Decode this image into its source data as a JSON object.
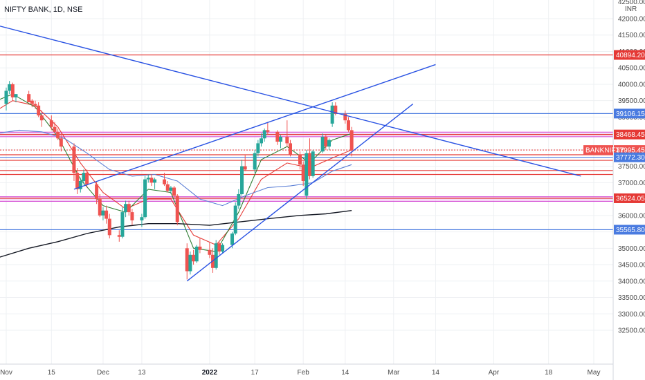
{
  "header": {
    "symbol_title": "NIFTY BANK, 1D, NSE",
    "currency": "INR",
    "top_price_partial": "42500.00"
  },
  "colors": {
    "up": "#26a69a",
    "down": "#ef5350",
    "ema_red": "#e53935",
    "ema_green": "#2e7d32",
    "ema_blue": "#5b7fd6",
    "ema_black": "#131722",
    "trendline": "#2952e3",
    "level_red": "#e53935",
    "level_blue": "#4a7be0",
    "level_magenta": "#d13fd1",
    "grid": "#eef0f3"
  },
  "chart_data": {
    "type": "candlestick",
    "symbol": "NIFTY BANK, 1D, NSE",
    "currency": "INR",
    "y_range": [
      32000,
      42500
    ],
    "y_ticks": [
      32500,
      33000,
      33500,
      34000,
      34500,
      35000,
      35500,
      36000,
      36500,
      37000,
      37500,
      38000,
      38500,
      39000,
      39500,
      40000,
      40500,
      41000,
      41500,
      42000
    ],
    "x_ticks": [
      {
        "label": "Nov",
        "date": "2021-11-01",
        "bold": false
      },
      {
        "label": "15",
        "date": "2021-11-15",
        "bold": false
      },
      {
        "label": "Dec",
        "date": "2021-12-01",
        "bold": false
      },
      {
        "label": "13",
        "date": "2021-12-13",
        "bold": false
      },
      {
        "label": "2022",
        "date": "2022-01-03",
        "bold": true
      },
      {
        "label": "17",
        "date": "2022-01-17",
        "bold": false
      },
      {
        "label": "Feb",
        "date": "2022-02-01",
        "bold": false
      },
      {
        "label": "14",
        "date": "2022-02-14",
        "bold": false
      },
      {
        "label": "Mar",
        "date": "2022-03-01",
        "bold": false
      },
      {
        "label": "14",
        "date": "2022-03-14",
        "bold": false
      },
      {
        "label": "Apr",
        "date": "2022-04-01",
        "bold": false
      },
      {
        "label": "18",
        "date": "2022-04-18",
        "bold": false
      },
      {
        "label": "May",
        "date": "2022-05-02",
        "bold": false
      }
    ],
    "candles": [
      {
        "date": "2021-10-29",
        "o": 39100,
        "h": 39400,
        "l": 38700,
        "c": 39000
      },
      {
        "date": "2021-11-01",
        "o": 39400,
        "h": 39900,
        "l": 39200,
        "c": 39800
      },
      {
        "date": "2021-11-02",
        "o": 39800,
        "h": 40100,
        "l": 39700,
        "c": 40000
      },
      {
        "date": "2021-11-03",
        "o": 40000,
        "h": 40050,
        "l": 39500,
        "c": 39600
      },
      {
        "date": "2021-11-04",
        "o": 39600,
        "h": 39700,
        "l": 39450,
        "c": 39700
      },
      {
        "date": "2021-11-08",
        "o": 39700,
        "h": 39800,
        "l": 39500,
        "c": 39450
      },
      {
        "date": "2021-11-09",
        "o": 39500,
        "h": 39550,
        "l": 39300,
        "c": 39400
      },
      {
        "date": "2021-11-10",
        "o": 39400,
        "h": 39500,
        "l": 39250,
        "c": 39350
      },
      {
        "date": "2021-11-11",
        "o": 39350,
        "h": 39450,
        "l": 39000,
        "c": 39050
      },
      {
        "date": "2021-11-12",
        "o": 39050,
        "h": 39200,
        "l": 38700,
        "c": 38900
      },
      {
        "date": "2021-11-15",
        "o": 38900,
        "h": 39050,
        "l": 38600,
        "c": 38700
      },
      {
        "date": "2021-11-16",
        "o": 38700,
        "h": 38850,
        "l": 38500,
        "c": 38550
      },
      {
        "date": "2021-11-17",
        "o": 38550,
        "h": 38650,
        "l": 38300,
        "c": 38350
      },
      {
        "date": "2021-11-18",
        "o": 38350,
        "h": 38500,
        "l": 37950,
        "c": 38100
      },
      {
        "date": "2021-11-22",
        "o": 38100,
        "h": 38200,
        "l": 37050,
        "c": 37300
      },
      {
        "date": "2021-11-23",
        "o": 37300,
        "h": 37450,
        "l": 36650,
        "c": 36800
      },
      {
        "date": "2021-11-24",
        "o": 36800,
        "h": 37150,
        "l": 36700,
        "c": 37050
      },
      {
        "date": "2021-11-25",
        "o": 37050,
        "h": 37400,
        "l": 36950,
        "c": 37300
      },
      {
        "date": "2021-11-26",
        "o": 37300,
        "h": 37400,
        "l": 36850,
        "c": 36950
      },
      {
        "date": "2021-11-29",
        "o": 36950,
        "h": 37050,
        "l": 36350,
        "c": 36500
      },
      {
        "date": "2021-11-30",
        "o": 36500,
        "h": 36650,
        "l": 35950,
        "c": 36000
      },
      {
        "date": "2021-12-01",
        "o": 36000,
        "h": 36250,
        "l": 35850,
        "c": 36150
      },
      {
        "date": "2021-12-02",
        "o": 36150,
        "h": 36300,
        "l": 35750,
        "c": 35900
      },
      {
        "date": "2021-12-03",
        "o": 35900,
        "h": 36050,
        "l": 35300,
        "c": 35400
      },
      {
        "date": "2021-12-06",
        "o": 35400,
        "h": 35550,
        "l": 35200,
        "c": 35350
      },
      {
        "date": "2021-12-07",
        "o": 35350,
        "h": 36250,
        "l": 35300,
        "c": 36100
      },
      {
        "date": "2021-12-08",
        "o": 36100,
        "h": 36450,
        "l": 35950,
        "c": 36350
      },
      {
        "date": "2021-12-09",
        "o": 36350,
        "h": 36450,
        "l": 36000,
        "c": 36100
      },
      {
        "date": "2021-12-10",
        "o": 36100,
        "h": 36200,
        "l": 35700,
        "c": 35850
      },
      {
        "date": "2021-12-13",
        "o": 35850,
        "h": 36050,
        "l": 35650,
        "c": 35950
      },
      {
        "date": "2021-12-14",
        "o": 35950,
        "h": 37200,
        "l": 35900,
        "c": 37100
      },
      {
        "date": "2021-12-15",
        "o": 37100,
        "h": 37250,
        "l": 37000,
        "c": 37150
      },
      {
        "date": "2021-12-16",
        "o": 37150,
        "h": 37250,
        "l": 36900,
        "c": 37000
      },
      {
        "date": "2021-12-17",
        "o": 37000,
        "h": 37150,
        "l": 36800,
        "c": 37100
      },
      {
        "date": "2021-12-20",
        "o": 37100,
        "h": 37300,
        "l": 36900,
        "c": 36950
      },
      {
        "date": "2021-12-21",
        "o": 36950,
        "h": 37050,
        "l": 36700,
        "c": 36750
      },
      {
        "date": "2021-12-22",
        "o": 36750,
        "h": 36900,
        "l": 36650,
        "c": 36850
      },
      {
        "date": "2021-12-23",
        "o": 36850,
        "h": 36900,
        "l": 36500,
        "c": 36600
      },
      {
        "date": "2021-12-24",
        "o": 36600,
        "h": 36650,
        "l": 35700,
        "c": 35800
      },
      {
        "date": "2021-12-27",
        "o": 35000,
        "h": 35150,
        "l": 34050,
        "c": 34300
      },
      {
        "date": "2021-12-28",
        "o": 34300,
        "h": 34900,
        "l": 34200,
        "c": 34800
      },
      {
        "date": "2021-12-29",
        "o": 34800,
        "h": 34950,
        "l": 34500,
        "c": 34600
      },
      {
        "date": "2021-12-30",
        "o": 34600,
        "h": 35100,
        "l": 34550,
        "c": 35050
      },
      {
        "date": "2021-12-31",
        "o": 35050,
        "h": 35300,
        "l": 34850,
        "c": 34950
      },
      {
        "date": "2022-01-03",
        "o": 34950,
        "h": 35200,
        "l": 34700,
        "c": 34800
      },
      {
        "date": "2022-01-04",
        "o": 34800,
        "h": 35000,
        "l": 34250,
        "c": 34400
      },
      {
        "date": "2022-01-05",
        "o": 34400,
        "h": 35250,
        "l": 34350,
        "c": 35150
      },
      {
        "date": "2022-01-06",
        "o": 35150,
        "h": 35200,
        "l": 34800,
        "c": 34900
      },
      {
        "date": "2022-01-07",
        "o": 34900,
        "h": 35150,
        "l": 34850,
        "c": 35100
      },
      {
        "date": "2022-01-10",
        "o": 35100,
        "h": 35500,
        "l": 35000,
        "c": 35450
      },
      {
        "date": "2022-01-11",
        "o": 35450,
        "h": 36400,
        "l": 35400,
        "c": 36300
      },
      {
        "date": "2022-01-12",
        "o": 36300,
        "h": 36800,
        "l": 36200,
        "c": 36650
      },
      {
        "date": "2022-01-13",
        "o": 36650,
        "h": 37700,
        "l": 36600,
        "c": 37500
      },
      {
        "date": "2022-01-14",
        "o": 37500,
        "h": 37850,
        "l": 37350,
        "c": 37400
      },
      {
        "date": "2022-01-17",
        "o": 37400,
        "h": 38000,
        "l": 37300,
        "c": 37900
      },
      {
        "date": "2022-01-18",
        "o": 37900,
        "h": 38300,
        "l": 37800,
        "c": 38200
      },
      {
        "date": "2022-01-19",
        "o": 38200,
        "h": 38500,
        "l": 38100,
        "c": 38350
      },
      {
        "date": "2022-01-20",
        "o": 38350,
        "h": 38650,
        "l": 38250,
        "c": 38600
      },
      {
        "date": "2022-01-21",
        "o": 38600,
        "h": 38850,
        "l": 38450,
        "c": 38550
      },
      {
        "date": "2022-01-24",
        "o": 38550,
        "h": 38600,
        "l": 38150,
        "c": 38250
      },
      {
        "date": "2022-01-25",
        "o": 38250,
        "h": 38450,
        "l": 38050,
        "c": 38400
      },
      {
        "date": "2022-01-27",
        "o": 38400,
        "h": 38900,
        "l": 38100,
        "c": 38200
      },
      {
        "date": "2022-01-28",
        "o": 38200,
        "h": 38300,
        "l": 37800,
        "c": 37850
      },
      {
        "date": "2022-01-31",
        "o": 37850,
        "h": 37950,
        "l": 37400,
        "c": 37550
      },
      {
        "date": "2022-02-01",
        "o": 37550,
        "h": 37650,
        "l": 36900,
        "c": 37050
      },
      {
        "date": "2022-02-02",
        "o": 36600,
        "h": 38000,
        "l": 36500,
        "c": 37900
      },
      {
        "date": "2022-02-03",
        "o": 37900,
        "h": 38350,
        "l": 37100,
        "c": 37200
      },
      {
        "date": "2022-02-04",
        "o": 37200,
        "h": 38000,
        "l": 37150,
        "c": 37950
      },
      {
        "date": "2022-02-07",
        "o": 37950,
        "h": 38500,
        "l": 37900,
        "c": 38400
      },
      {
        "date": "2022-02-08",
        "o": 38400,
        "h": 38450,
        "l": 38000,
        "c": 38100
      },
      {
        "date": "2022-02-09",
        "o": 38100,
        "h": 38350,
        "l": 38000,
        "c": 38300
      },
      {
        "date": "2022-02-10",
        "o": 38800,
        "h": 39450,
        "l": 38700,
        "c": 39350
      },
      {
        "date": "2022-02-11",
        "o": 39350,
        "h": 39450,
        "l": 39050,
        "c": 39100
      },
      {
        "date": "2022-02-14",
        "o": 39100,
        "h": 39200,
        "l": 38800,
        "c": 38900
      },
      {
        "date": "2022-02-15",
        "o": 38900,
        "h": 39000,
        "l": 38550,
        "c": 38600
      },
      {
        "date": "2022-02-16",
        "o": 38600,
        "h": 38700,
        "l": 37800,
        "c": 37995.45
      }
    ],
    "moving_averages": [
      {
        "color": "ema_red",
        "points": [
          [
            "2021-10-29",
            39200
          ],
          [
            "2021-11-03",
            39500
          ],
          [
            "2021-11-10",
            39350
          ],
          [
            "2021-11-17",
            38700
          ],
          [
            "2021-11-24",
            37600
          ],
          [
            "2021-12-01",
            36700
          ],
          [
            "2021-12-08",
            36200
          ],
          [
            "2021-12-15",
            36500
          ],
          [
            "2021-12-22",
            36500
          ],
          [
            "2021-12-29",
            35400
          ],
          [
            "2022-01-05",
            35100
          ],
          [
            "2022-01-12",
            35900
          ],
          [
            "2022-01-19",
            37100
          ],
          [
            "2022-01-27",
            37600
          ],
          [
            "2022-02-03",
            37450
          ],
          [
            "2022-02-10",
            37750
          ],
          [
            "2022-02-16",
            38000
          ]
        ]
      },
      {
        "color": "ema_green",
        "points": [
          [
            "2021-10-29",
            39500
          ],
          [
            "2021-11-03",
            39700
          ],
          [
            "2021-11-10",
            39300
          ],
          [
            "2021-11-17",
            38400
          ],
          [
            "2021-11-24",
            37100
          ],
          [
            "2021-12-01",
            36300
          ],
          [
            "2021-12-08",
            36100
          ],
          [
            "2021-12-15",
            36800
          ],
          [
            "2021-12-22",
            36700
          ],
          [
            "2021-12-29",
            35000
          ],
          [
            "2022-01-05",
            34900
          ],
          [
            "2022-01-12",
            36100
          ],
          [
            "2022-01-19",
            37700
          ],
          [
            "2022-01-27",
            38100
          ],
          [
            "2022-02-03",
            37600
          ],
          [
            "2022-02-10",
            38300
          ],
          [
            "2022-02-16",
            38500
          ]
        ]
      },
      {
        "color": "ema_blue",
        "points": [
          [
            "2021-10-29",
            38500
          ],
          [
            "2021-11-05",
            38600
          ],
          [
            "2021-11-12",
            38550
          ],
          [
            "2021-11-19",
            38350
          ],
          [
            "2021-11-26",
            37900
          ],
          [
            "2021-12-03",
            37400
          ],
          [
            "2021-12-10",
            37200
          ],
          [
            "2021-12-17",
            37250
          ],
          [
            "2021-12-24",
            37050
          ],
          [
            "2021-12-31",
            36500
          ],
          [
            "2022-01-07",
            36300
          ],
          [
            "2022-01-14",
            36600
          ],
          [
            "2022-01-21",
            36850
          ],
          [
            "2022-01-28",
            36900
          ],
          [
            "2022-02-04",
            37000
          ],
          [
            "2022-02-10",
            37350
          ],
          [
            "2022-02-16",
            37550
          ]
        ]
      },
      {
        "color": "ema_black",
        "points": [
          [
            "2021-10-29",
            34700
          ],
          [
            "2021-11-08",
            35000
          ],
          [
            "2021-11-17",
            35200
          ],
          [
            "2021-11-26",
            35450
          ],
          [
            "2021-12-06",
            35650
          ],
          [
            "2021-12-15",
            35750
          ],
          [
            "2021-12-24",
            35750
          ],
          [
            "2022-01-03",
            35700
          ],
          [
            "2022-01-12",
            35800
          ],
          [
            "2022-01-21",
            35900
          ],
          [
            "2022-01-31",
            36000
          ],
          [
            "2022-02-08",
            36050
          ],
          [
            "2022-02-16",
            36150
          ]
        ]
      }
    ],
    "trendlines": [
      {
        "from": [
          "2021-10-29",
          41800
        ],
        "to": [
          "2022-04-28",
          37200
        ]
      },
      {
        "from": [
          "2021-11-22",
          36800
        ],
        "to": [
          "2022-03-14",
          40600
        ]
      },
      {
        "from": [
          "2021-12-27",
          34000
        ],
        "to": [
          "2022-03-07",
          39400
        ]
      }
    ],
    "horizontal_levels": [
      {
        "price": 40894.2,
        "label": "40894.20",
        "color": "level_red",
        "tag": true
      },
      {
        "price": 39106.15,
        "label": "39106.15",
        "color": "level_blue",
        "tag": true
      },
      {
        "price": 38468.45,
        "label": "38468.45",
        "color": "level_red",
        "tag": true,
        "zone": [
          38400,
          38540
        ]
      },
      {
        "price": 37995.45,
        "label": "37995.45",
        "color": "down",
        "tag": true,
        "symbol_tag": "BANKNIFTY"
      },
      {
        "price": 37772.3,
        "label": "37772.30",
        "color": "level_blue",
        "tag": true
      },
      {
        "price": 37850,
        "color": "level_red",
        "tag": false
      },
      {
        "price": 37680,
        "color": "level_red",
        "tag": false
      },
      {
        "price": 37370,
        "color": "level_red",
        "tag": false
      },
      {
        "price": 37250,
        "color": "level_red",
        "tag": false
      },
      {
        "price": 36524.05,
        "label": "36524.05",
        "color": "level_red",
        "tag": true,
        "zone": [
          36430,
          36570
        ]
      },
      {
        "price": 35565.8,
        "label": "35565.80",
        "color": "level_blue",
        "tag": true
      }
    ]
  }
}
